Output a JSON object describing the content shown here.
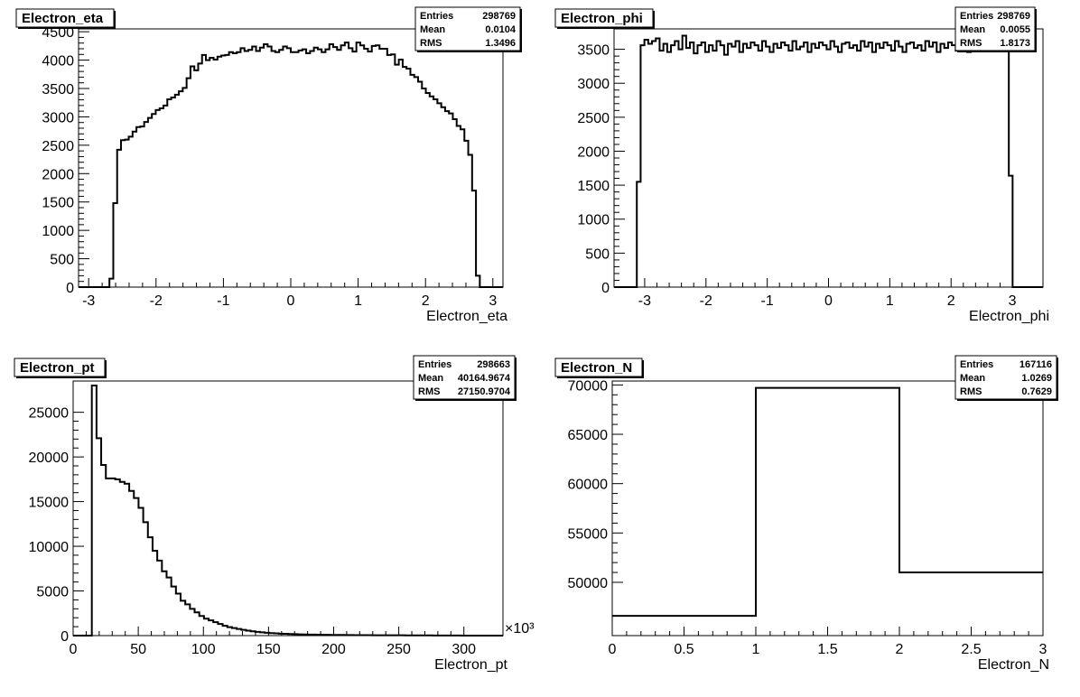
{
  "chart_data": [
    {
      "type": "bar",
      "title": "Electron_eta",
      "xlabel": "Electron_eta",
      "ylabel": "",
      "xlim": [
        -3.15,
        3.15
      ],
      "ylim": [
        0,
        4550
      ],
      "x_ticks": [
        -3,
        -2,
        -1,
        0,
        1,
        2,
        3
      ],
      "y_ticks": [
        0,
        500,
        1000,
        1500,
        2000,
        2500,
        3000,
        3500,
        4000,
        4500
      ],
      "bin_edges_range": [
        -3.15,
        3.15
      ],
      "values": [
        0,
        0,
        0,
        0,
        0,
        0,
        0,
        0,
        150,
        1480,
        2420,
        2590,
        2600,
        2650,
        2740,
        2820,
        2830,
        2910,
        2980,
        3050,
        3120,
        3150,
        3200,
        3310,
        3340,
        3390,
        3450,
        3510,
        3680,
        3890,
        3820,
        3940,
        4090,
        4000,
        4040,
        4010,
        4060,
        4080,
        4090,
        4140,
        4120,
        4140,
        4210,
        4160,
        4180,
        4240,
        4160,
        4220,
        4280,
        4240,
        4160,
        4140,
        4180,
        4240,
        4210,
        4140,
        4140,
        4170,
        4190,
        4120,
        4160,
        4220,
        4190,
        4140,
        4190,
        4280,
        4230,
        4180,
        4260,
        4310,
        4210,
        4150,
        4310,
        4260,
        4200,
        4150,
        4250,
        4260,
        4200,
        4200,
        4090,
        4100,
        3920,
        4010,
        3880,
        3850,
        3740,
        3700,
        3620,
        3500,
        3420,
        3360,
        3310,
        3240,
        3170,
        3100,
        3060,
        2960,
        2840,
        2780,
        2580,
        2330,
        1700,
        200,
        0,
        0,
        0,
        0,
        0,
        0
      ],
      "stats": {
        "entries_label": "Entries",
        "entries": "298769",
        "mean_label": "Mean",
        "mean": "0.0104",
        "rms_label": "RMS",
        "rms": "1.3496"
      }
    },
    {
      "type": "bar",
      "title": "Electron_phi",
      "xlabel": "Electron_phi",
      "ylabel": "",
      "xlim": [
        -3.5,
        3.5
      ],
      "ylim": [
        0,
        3800
      ],
      "x_ticks": [
        -3,
        -2,
        -1,
        0,
        1,
        2,
        3
      ],
      "y_ticks": [
        0,
        500,
        1000,
        1500,
        2000,
        2500,
        3000,
        3500
      ],
      "values": [
        0,
        0,
        0,
        0,
        0,
        0,
        1550,
        3560,
        3640,
        3580,
        3620,
        3660,
        3480,
        3580,
        3460,
        3560,
        3620,
        3500,
        3700,
        3520,
        3600,
        3440,
        3560,
        3600,
        3460,
        3560,
        3480,
        3620,
        3560,
        3420,
        3580,
        3540,
        3620,
        3460,
        3580,
        3520,
        3600,
        3560,
        3480,
        3620,
        3540,
        3460,
        3580,
        3520,
        3600,
        3560,
        3480,
        3620,
        3500,
        3540,
        3600,
        3460,
        3580,
        3520,
        3600,
        3560,
        3500,
        3620,
        3540,
        3460,
        3580,
        3600,
        3520,
        3560,
        3480,
        3620,
        3540,
        3600,
        3460,
        3580,
        3520,
        3600,
        3560,
        3480,
        3620,
        3540,
        3460,
        3580,
        3600,
        3520,
        3560,
        3480,
        3620,
        3540,
        3600,
        3460,
        3580,
        3520,
        3600,
        3560,
        3480,
        3620,
        3540,
        3460,
        3580,
        3600,
        3620,
        3640,
        3560,
        3600,
        3600,
        3600,
        3600,
        3600,
        1640,
        0,
        0,
        0,
        0,
        0,
        0,
        0,
        0
      ],
      "stats": {
        "entries_label": "Entries",
        "entries": "298769",
        "mean_label": "Mean",
        "mean": "0.0055",
        "rms_label": "RMS",
        "rms": "1.8173"
      }
    },
    {
      "type": "bar",
      "title": "Electron_pt",
      "xlabel": "Electron_pt",
      "ylabel": "",
      "x_unit_label": "×10³",
      "xlim": [
        0,
        330
      ],
      "ylim": [
        0,
        28500
      ],
      "x_ticks": [
        0,
        50,
        100,
        150,
        200,
        250,
        300
      ],
      "y_ticks": [
        0,
        5000,
        10000,
        15000,
        20000,
        25000
      ],
      "values": [
        0,
        0,
        0,
        0,
        28000,
        22100,
        19100,
        17600,
        17600,
        17500,
        17200,
        17000,
        16200,
        15400,
        14300,
        12700,
        11000,
        9500,
        8400,
        7200,
        6500,
        5500,
        4700,
        3900,
        3500,
        3000,
        2600,
        2200,
        1900,
        1700,
        1500,
        1300,
        1100,
        950,
        850,
        750,
        650,
        560,
        480,
        420,
        370,
        320,
        280,
        250,
        220,
        200,
        180,
        160,
        140,
        130,
        120,
        110,
        100,
        90,
        85,
        80,
        75,
        70,
        65,
        60,
        55,
        50,
        48,
        46,
        44,
        42,
        40,
        38,
        36,
        34,
        32,
        30,
        28,
        26,
        24,
        22,
        20,
        18,
        16,
        14,
        12,
        10,
        8,
        6,
        4,
        2,
        0,
        0,
        0,
        0,
        0,
        0
      ],
      "stats": {
        "entries_label": "Entries",
        "entries": "298663",
        "mean_label": "Mean",
        "mean": "40164.9674",
        "rms_label": "RMS",
        "rms": "27150.9704"
      }
    },
    {
      "type": "bar",
      "title": "Electron_N",
      "xlabel": "Electron_N",
      "ylabel": "",
      "xlim": [
        0,
        3
      ],
      "ylim": [
        44600,
        70400
      ],
      "x_ticks": [
        0,
        0.5,
        1,
        1.5,
        2,
        2.5,
        3
      ],
      "y_ticks": [
        50000,
        55000,
        60000,
        65000,
        70000
      ],
      "bin_edges": [
        0,
        1,
        2,
        3
      ],
      "values": [
        46600,
        69700,
        51000
      ],
      "stats": {
        "entries_label": "Entries",
        "entries": "167116",
        "mean_label": "Mean",
        "mean": "1.0269",
        "rms_label": "RMS",
        "rms": "0.7629"
      }
    }
  ]
}
